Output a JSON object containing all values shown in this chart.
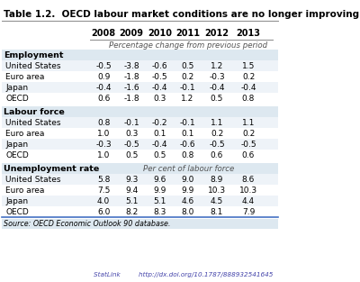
{
  "title": "Table 1.2.  OECD labour market conditions are no longer improving",
  "columns": [
    "",
    "2008",
    "2009",
    "2010",
    "2011",
    "2012",
    "2013"
  ],
  "subtitle_pct": "Percentage change from previous period",
  "subtitle_labour": "Per cent of labour force",
  "sections": [
    {
      "header": "Employment",
      "rows": [
        [
          "United States",
          "-0.5",
          "-3.8",
          "-0.6",
          "0.5",
          "1.2",
          "1.5"
        ],
        [
          "Euro area",
          "0.9",
          "-1.8",
          "-0.5",
          "0.2",
          "-0.3",
          "0.2"
        ],
        [
          "Japan",
          "-0.4",
          "-1.6",
          "-0.4",
          "-0.1",
          "-0.4",
          "-0.4"
        ],
        [
          "OECD",
          "0.6",
          "-1.8",
          "0.3",
          "1.2",
          "0.5",
          "0.8"
        ]
      ]
    },
    {
      "header": "Labour force",
      "rows": [
        [
          "United States",
          "0.8",
          "-0.1",
          "-0.2",
          "-0.1",
          "1.1",
          "1.1"
        ],
        [
          "Euro area",
          "1.0",
          "0.3",
          "0.1",
          "0.1",
          "0.2",
          "0.2"
        ],
        [
          "Japan",
          "-0.3",
          "-0.5",
          "-0.4",
          "-0.6",
          "-0.5",
          "-0.5"
        ],
        [
          "OECD",
          "1.0",
          "0.5",
          "0.5",
          "0.8",
          "0.6",
          "0.6"
        ]
      ]
    },
    {
      "header": "Unemployment rate",
      "rows": [
        [
          "United States",
          "5.8",
          "9.3",
          "9.6",
          "9.0",
          "8.9",
          "8.6"
        ],
        [
          "Euro area",
          "7.5",
          "9.4",
          "9.9",
          "9.9",
          "10.3",
          "10.3"
        ],
        [
          "Japan",
          "4.0",
          "5.1",
          "5.1",
          "4.6",
          "4.5",
          "4.4"
        ],
        [
          "OECD",
          "6.0",
          "8.2",
          "8.3",
          "8.0",
          "8.1",
          "7.9"
        ]
      ]
    }
  ],
  "source": "Source: OECD Economic Outlook 90 database.",
  "statlink": "StatLink         http://dx.doi.org/10.1787/888932541645",
  "bg_color_header": "#dde8f0",
  "bg_color_row_even": "#eef3f8",
  "bg_color_row_odd": "#ffffff",
  "bg_color_section_header": "#dde8f0",
  "title_color": "#000000",
  "header_text_color": "#000000",
  "data_text_color": "#000000"
}
